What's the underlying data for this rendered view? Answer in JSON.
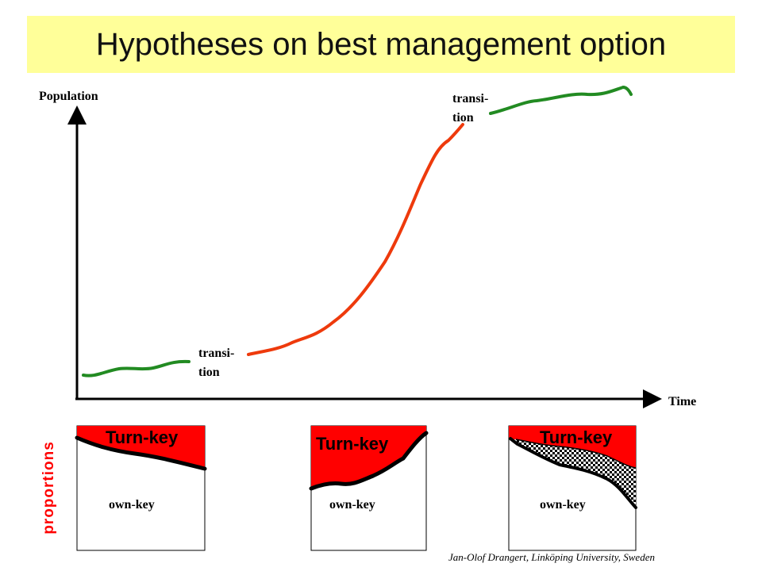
{
  "title": "Hypotheses on best management option",
  "axes": {
    "y_label": "Population",
    "x_label": "Time"
  },
  "transition_label_lines": [
    "transi-",
    "tion"
  ],
  "proportions_label": "proportions",
  "panels": {
    "turnkey_label": "Turn-key",
    "ownkey_label": "own-key"
  },
  "footer": "Jan-Olof Drangert, Linköping University, Sweden",
  "colors": {
    "title_background": "#ffff99",
    "early_stage": "#228b22",
    "growth_stage": "#ee3a0c",
    "turnkey_fill": "#ff0000",
    "proportions_label": "#ff0000"
  }
}
